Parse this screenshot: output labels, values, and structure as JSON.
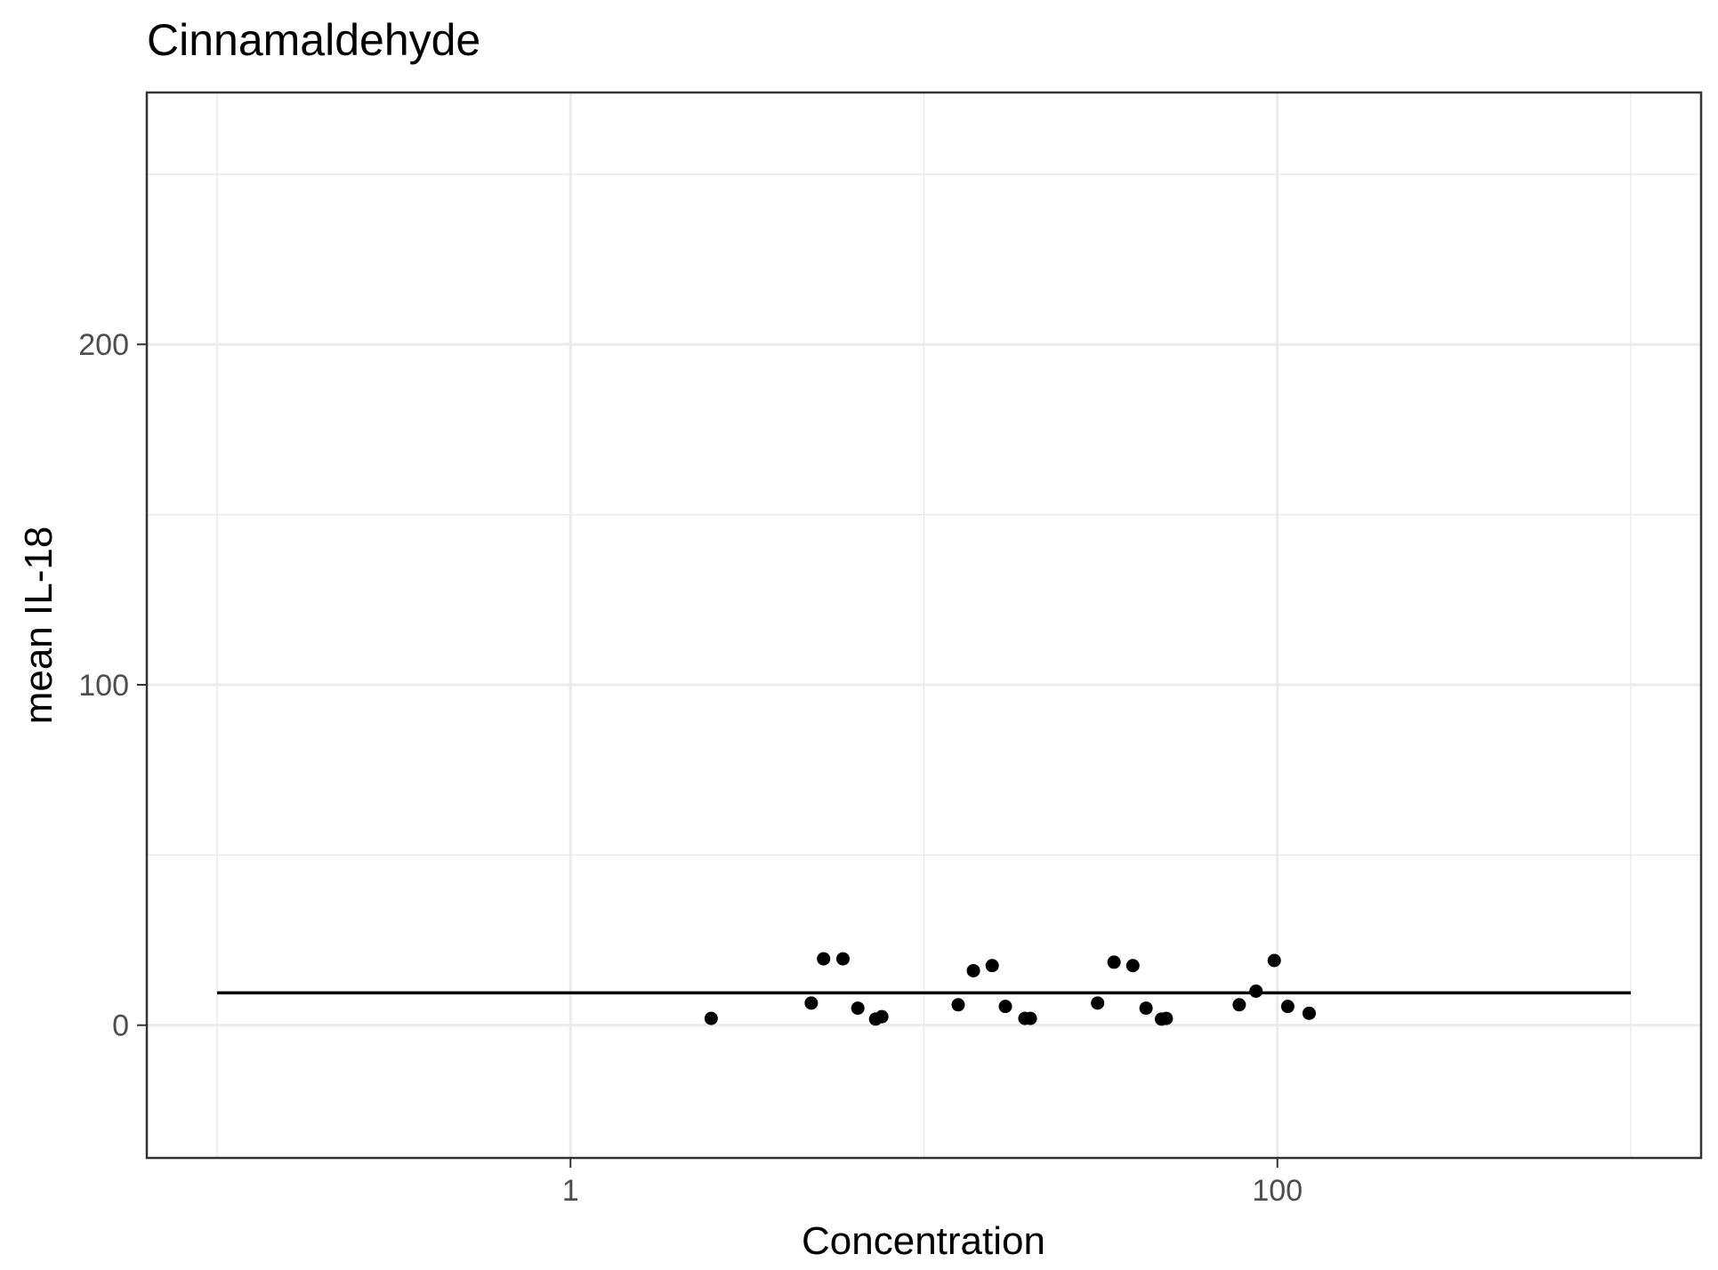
{
  "chart_data": {
    "type": "scatter",
    "title": "Cinnamaldehyde",
    "xlabel": "Concentration",
    "ylabel": "mean IL-18",
    "x_scale": "log10",
    "xlim": [
      0.1,
      1000
    ],
    "ylim": [
      -39,
      274
    ],
    "x_ticks": [
      1,
      100
    ],
    "x_tick_labels": [
      "1",
      "100"
    ],
    "x_minor_grid": [
      0.1,
      10,
      1000
    ],
    "y_ticks": [
      0,
      100,
      200
    ],
    "y_tick_labels": [
      "0",
      "100",
      "200"
    ],
    "y_minor_grid": [
      50,
      150,
      250
    ],
    "grid": true,
    "legend": "none",
    "point_color": "#000000",
    "line_color": "#000000",
    "points": [
      {
        "x": 2.5,
        "y": 2
      },
      {
        "x": 4.8,
        "y": 6.5
      },
      {
        "x": 5.2,
        "y": 19.5
      },
      {
        "x": 5.9,
        "y": 19.5
      },
      {
        "x": 6.5,
        "y": 5
      },
      {
        "x": 7.3,
        "y": 1.8
      },
      {
        "x": 7.6,
        "y": 2.5
      },
      {
        "x": 12.5,
        "y": 6
      },
      {
        "x": 13.8,
        "y": 16
      },
      {
        "x": 15.6,
        "y": 17.5
      },
      {
        "x": 17.0,
        "y": 5.5
      },
      {
        "x": 19.3,
        "y": 2
      },
      {
        "x": 20.0,
        "y": 2
      },
      {
        "x": 31.0,
        "y": 6.5
      },
      {
        "x": 34.5,
        "y": 18.5
      },
      {
        "x": 39.0,
        "y": 17.5
      },
      {
        "x": 42.5,
        "y": 5
      },
      {
        "x": 47.0,
        "y": 1.8
      },
      {
        "x": 48.5,
        "y": 2
      },
      {
        "x": 78.0,
        "y": 6
      },
      {
        "x": 87.0,
        "y": 10
      },
      {
        "x": 98.0,
        "y": 19
      },
      {
        "x": 107.0,
        "y": 5.5
      },
      {
        "x": 123.0,
        "y": 3.5
      }
    ],
    "fit_line": {
      "x": [
        0.1,
        1000
      ],
      "y": [
        9.5,
        9.5
      ]
    }
  }
}
